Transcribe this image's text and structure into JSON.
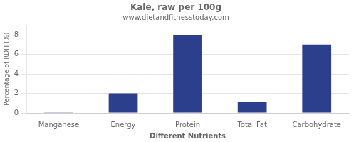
{
  "chart_data": {
    "type": "bar",
    "title": "Kale, raw per 100g",
    "subtitle": "www.dietandfitnesstoday.com",
    "categories": [
      "Manganese",
      "Energy",
      "Protein",
      "Total Fat",
      "Carbohydrate"
    ],
    "values": [
      0.05,
      2.0,
      8.0,
      1.1,
      7.0
    ],
    "color": "#2b3f8c",
    "xlabel": "Different Nutrients",
    "ylabel": "Percentage of RDH (%)",
    "ylim": [
      0,
      9
    ],
    "yticks": [
      0,
      2,
      4,
      6,
      8
    ],
    "grid": true
  }
}
